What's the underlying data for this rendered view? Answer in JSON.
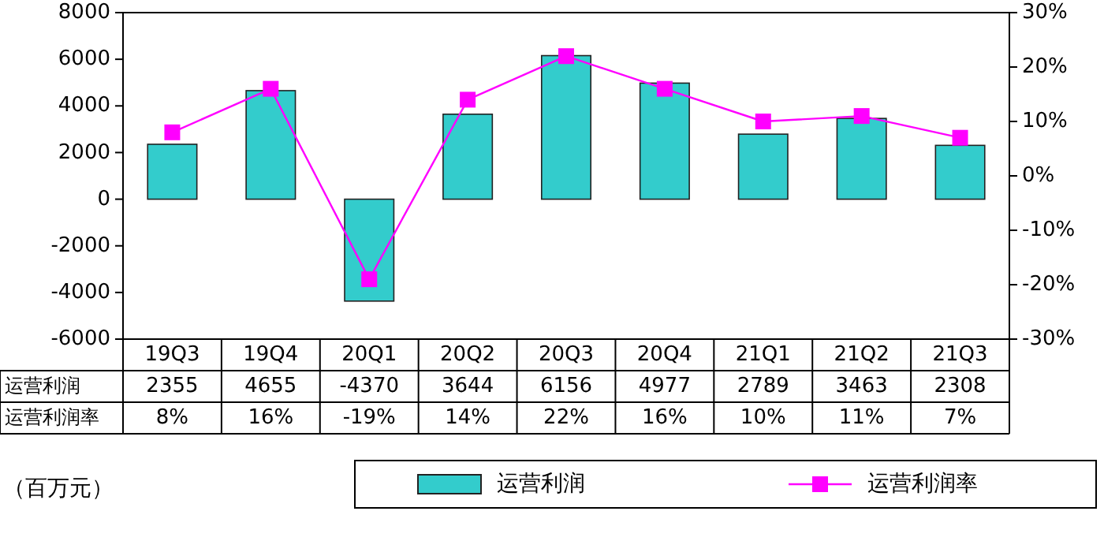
{
  "chart_data": {
    "type": "bar",
    "categories": [
      "19Q3",
      "19Q4",
      "20Q1",
      "20Q2",
      "20Q3",
      "20Q4",
      "21Q1",
      "21Q2",
      "21Q3"
    ],
    "series": [
      {
        "name": "运营利润",
        "color": "#33cccc",
        "values": [
          2355,
          4655,
          -4370,
          3644,
          6156,
          4977,
          2789,
          3463,
          2308
        ],
        "value_labels": [
          "2355",
          "4655",
          "-4370",
          "3644",
          "6156",
          "4977",
          "2789",
          "3463",
          "2308"
        ]
      },
      {
        "name": "运营利润率",
        "type": "line",
        "axis": "y2",
        "color": "#ff00ff",
        "marker": "square",
        "values": [
          8,
          16,
          -19,
          14,
          22,
          16,
          10,
          11,
          7
        ],
        "value_labels": [
          "8%",
          "16%",
          "-19%",
          "14%",
          "22%",
          "16%",
          "10%",
          "11%",
          "7%"
        ]
      }
    ],
    "ylim": [
      -6000,
      8000
    ],
    "yticks": [
      -6000,
      -4000,
      -2000,
      0,
      2000,
      4000,
      6000,
      8000
    ],
    "y2lim": [
      -30,
      30
    ],
    "y2ticks": [
      {
        "value": -30,
        "label": "-30%"
      },
      {
        "value": -20,
        "label": "-20%"
      },
      {
        "value": -10,
        "label": "-10%"
      },
      {
        "value": 0,
        "label": "0%"
      },
      {
        "value": 10,
        "label": "10%"
      },
      {
        "value": 20,
        "label": "20%"
      },
      {
        "value": 30,
        "label": "30%"
      }
    ],
    "legend": "bottom",
    "annotations": [
      "（百万元）"
    ]
  }
}
